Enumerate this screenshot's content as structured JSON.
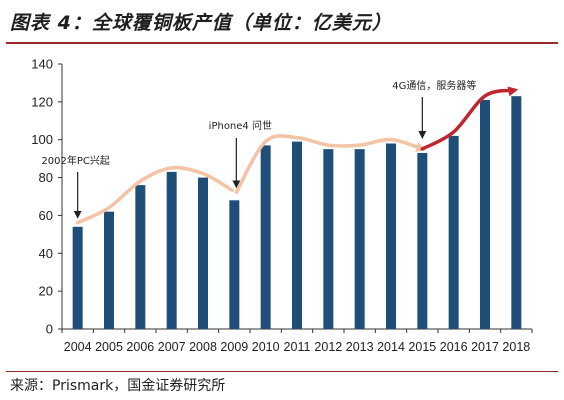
{
  "header": {
    "title": "图表 4：全球覆铜板产值（单位：亿美元）"
  },
  "footer": {
    "source": "来源：Prismark，国金证券研究所"
  },
  "chart_data": {
    "type": "bar",
    "title": "图表 4：全球覆铜板产值（单位：亿美元）",
    "xlabel": "",
    "ylabel": "",
    "categories": [
      "2004",
      "2005",
      "2006",
      "2007",
      "2008",
      "2009",
      "2010",
      "2011",
      "2012",
      "2013",
      "2014",
      "2015",
      "2016",
      "2017",
      "2018"
    ],
    "values": [
      54,
      62,
      76,
      83,
      80,
      68,
      97,
      99,
      95,
      95,
      98,
      93,
      102,
      121,
      123
    ],
    "ylim": [
      0,
      140
    ],
    "yticks": [
      0,
      20,
      40,
      60,
      80,
      100,
      120,
      140
    ],
    "grid": false,
    "legend": "none",
    "bar_color": "#1f4e79",
    "trend_color_early": "#f4c2a4",
    "trend_color_late": "#c0262d",
    "annotations": [
      {
        "text": "2002年PC兴起",
        "year": "2004"
      },
      {
        "text": "iPhone4 问世",
        "year": "2009"
      },
      {
        "text": "4G通信，服务器等",
        "year": "2015"
      }
    ]
  }
}
